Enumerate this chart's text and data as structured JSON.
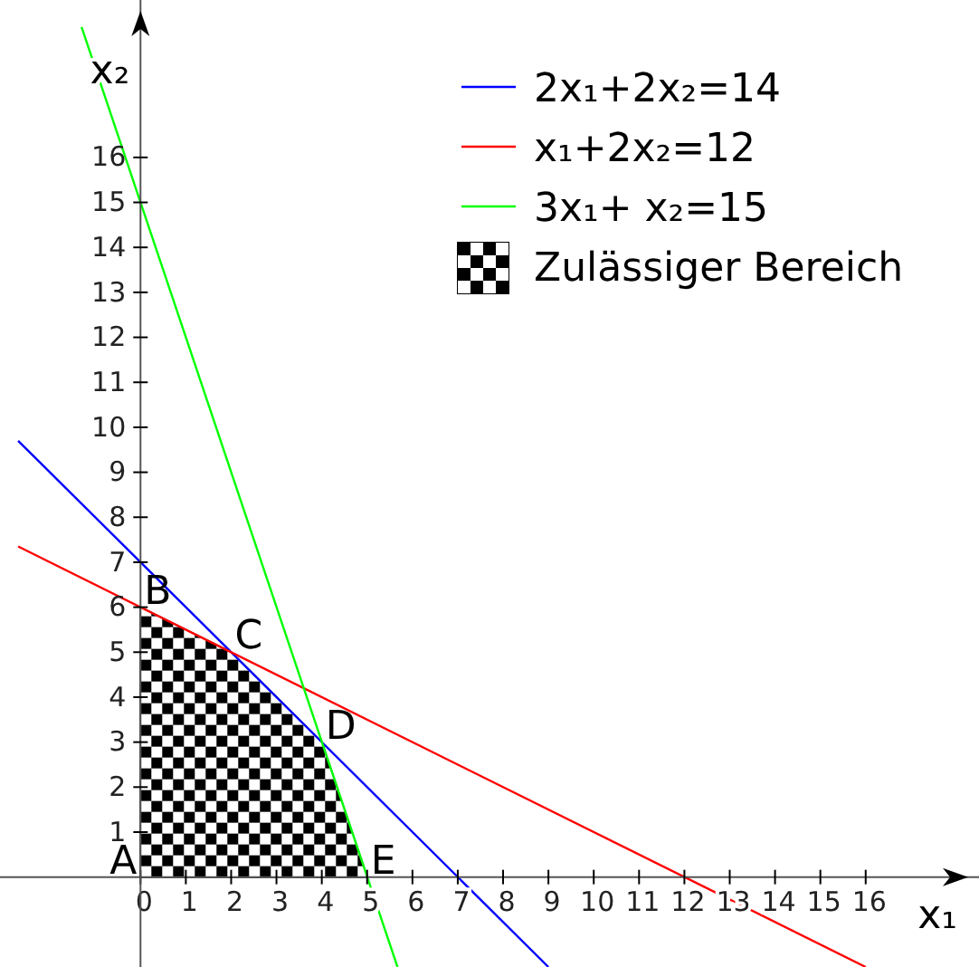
{
  "chart_data": {
    "type": "line",
    "xlabel": "x₁",
    "ylabel": "x₂",
    "xlim": [
      -3.1,
      18.5
    ],
    "ylim": [
      -2,
      19.5
    ],
    "xticks": [
      0,
      1,
      2,
      3,
      4,
      5,
      6,
      7,
      8,
      9,
      10,
      11,
      12,
      13,
      14,
      15,
      16
    ],
    "yticks": [
      1,
      2,
      3,
      4,
      5,
      6,
      7,
      8,
      9,
      10,
      11,
      12,
      13,
      14,
      15,
      16
    ],
    "series": [
      {
        "name": "2x₁+2x₂=14",
        "color": "#0000ff",
        "x": [
          -2.7,
          9
        ],
        "values": [
          9.7,
          -2
        ]
      },
      {
        "name": "x₁+2x₂=12",
        "color": "#ff0000",
        "x": [
          -2.7,
          16
        ],
        "values": [
          7.35,
          -2
        ]
      },
      {
        "name": "3x₁+ x₂=15",
        "color": "#00ff00",
        "x": [
          -1.3,
          5.67
        ],
        "values": [
          18.9,
          -2
        ]
      },
      {
        "name": "Zulässiger Bereich",
        "type": "area",
        "color": "#000000",
        "x": [
          0,
          2,
          4,
          5
        ],
        "values": [
          6,
          5,
          3,
          0
        ]
      }
    ],
    "annotations": [
      {
        "text": "A",
        "x": 0,
        "y": 0
      },
      {
        "text": "B",
        "x": 0,
        "y": 6
      },
      {
        "text": "C",
        "x": 2,
        "y": 5
      },
      {
        "text": "D",
        "x": 4,
        "y": 3
      },
      {
        "text": "E",
        "x": 5,
        "y": 0
      }
    ],
    "legend": "top right",
    "grid": false
  }
}
